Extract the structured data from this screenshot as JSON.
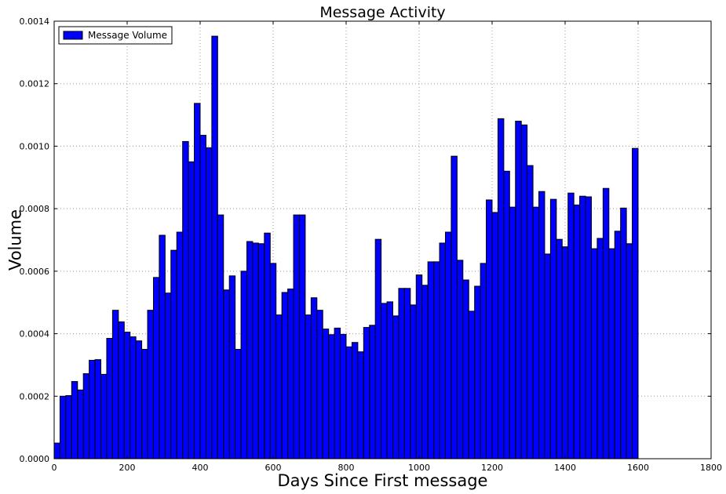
{
  "chart_data": {
    "type": "bar",
    "title": "Message Activity",
    "xlabel": "Days Since First message",
    "ylabel": "Volume",
    "xlim": [
      0,
      1800
    ],
    "ylim": [
      0,
      0.0014
    ],
    "xticks": [
      "0",
      "200",
      "400",
      "600",
      "800",
      "1000",
      "1200",
      "1400",
      "1600",
      "1800"
    ],
    "yticks": [
      "0.0000",
      "0.0002",
      "0.0004",
      "0.0006",
      "0.0008",
      "0.0010",
      "0.0012",
      "0.0014"
    ],
    "grid": true,
    "legend_position": "top-left",
    "bar_color": "#0000ff",
    "bin_width": 16,
    "series": [
      {
        "name": "Message Volume",
        "bin_starts": [
          0,
          16,
          32,
          48,
          64,
          80,
          96,
          112,
          128,
          144,
          160,
          176,
          192,
          208,
          224,
          240,
          256,
          272,
          288,
          304,
          320,
          336,
          352,
          368,
          384,
          400,
          416,
          432,
          448,
          464,
          480,
          496,
          512,
          528,
          544,
          560,
          576,
          592,
          608,
          624,
          640,
          656,
          672,
          688,
          704,
          720,
          736,
          752,
          768,
          784,
          800,
          816,
          832,
          848,
          864,
          880,
          896,
          912,
          928,
          944,
          960,
          976,
          992,
          1008,
          1024,
          1040,
          1056,
          1072,
          1088,
          1104,
          1120,
          1136,
          1152,
          1168,
          1184,
          1200,
          1216,
          1232,
          1248,
          1264,
          1280,
          1296,
          1312,
          1328,
          1344,
          1360,
          1376,
          1392,
          1408,
          1424,
          1440,
          1456,
          1472,
          1488,
          1504,
          1520,
          1536,
          1552,
          1568,
          1584
        ],
        "values": [
          5e-05,
          0.0002,
          0.000202,
          0.000247,
          0.00022,
          0.000272,
          0.000315,
          0.000317,
          0.00027,
          0.000385,
          0.000475,
          0.000438,
          0.000405,
          0.00039,
          0.000377,
          0.00035,
          0.000475,
          0.00058,
          0.000715,
          0.00053,
          0.000667,
          0.000725,
          0.001015,
          0.00095,
          0.001137,
          0.001035,
          0.000995,
          0.001352,
          0.00078,
          0.00054,
          0.000585,
          0.00035,
          0.0006,
          0.000695,
          0.00069,
          0.000688,
          0.000722,
          0.000625,
          0.00046,
          0.000532,
          0.000543,
          0.00078,
          0.00078,
          0.00046,
          0.000515,
          0.000475,
          0.000415,
          0.000397,
          0.000418,
          0.000398,
          0.000358,
          0.000372,
          0.000342,
          0.00042,
          0.000427,
          0.000702,
          0.000497,
          0.000502,
          0.000457,
          0.000545,
          0.000545,
          0.000492,
          0.000588,
          0.000555,
          0.00063,
          0.00063,
          0.00069,
          0.000725,
          0.000968,
          0.000635,
          0.000572,
          0.000472,
          0.000552,
          0.000625,
          0.000828,
          0.000788,
          0.001088,
          0.00092,
          0.000805,
          0.00108,
          0.001068,
          0.000938,
          0.000805,
          0.000855,
          0.000655,
          0.00083,
          0.000702,
          0.000678,
          0.00085,
          0.000812,
          0.00084,
          0.000838,
          0.000672,
          0.000705,
          0.000865,
          0.000672,
          0.000728,
          0.000802,
          0.000688,
          0.000993
        ]
      }
    ]
  }
}
